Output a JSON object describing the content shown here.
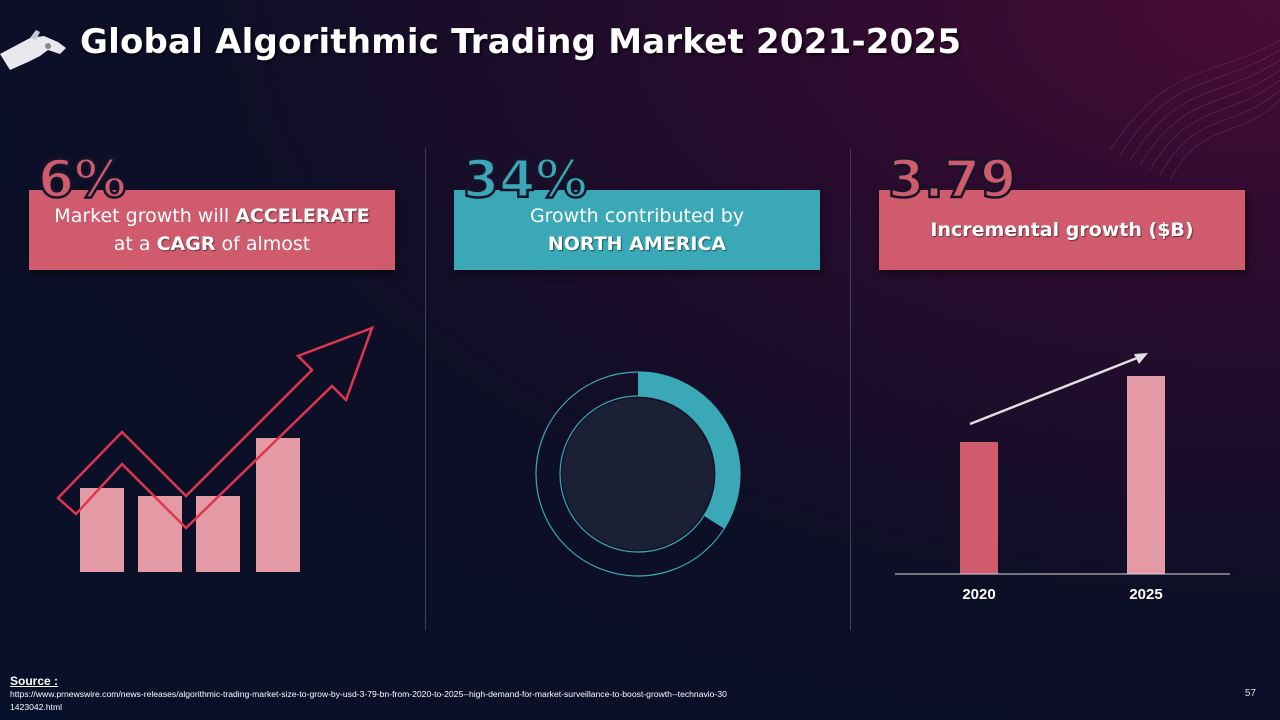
{
  "header": {
    "title": "Global Algorithmic Trading Market 2021-2025"
  },
  "icons": [
    "robot-hand-icon",
    "growth-arrow-icon",
    "donut-chart-icon",
    "trend-arrow-icon"
  ],
  "colors": {
    "pink": "#cf5b6d",
    "teal": "#3aa8b6",
    "light_pink": "#e49aa5",
    "background": "#07102a"
  },
  "panels": [
    {
      "big_number": "6%",
      "line1_prefix": "Market growth will ",
      "line1_bold": "ACCELERATE",
      "line2_prefix": "at a ",
      "line2_bold": "CAGR",
      "line2_suffix": " of almost"
    },
    {
      "big_number": "34%",
      "line1": "Growth contributed by",
      "line2_bold": "NORTH AMERICA",
      "donut_share": 0.34
    },
    {
      "big_number": "3.79",
      "label": "Incremental growth ($B)"
    }
  ],
  "chart_data": {
    "type": "bar",
    "categories": [
      "2020",
      "2025"
    ],
    "values": [
      132,
      198
    ],
    "ylim": [
      0,
      220
    ]
  },
  "footer": {
    "source_label": "Source :",
    "source_url": "https://www.prnewswire.com/news-releases/algorithmic-trading-market-size-to-grow-by-usd-3-79-bn-from-2020-to-2025--high-demand-for-market-surveillance-to-boost-growth--technavio-301423042.html",
    "page_number": "57"
  }
}
